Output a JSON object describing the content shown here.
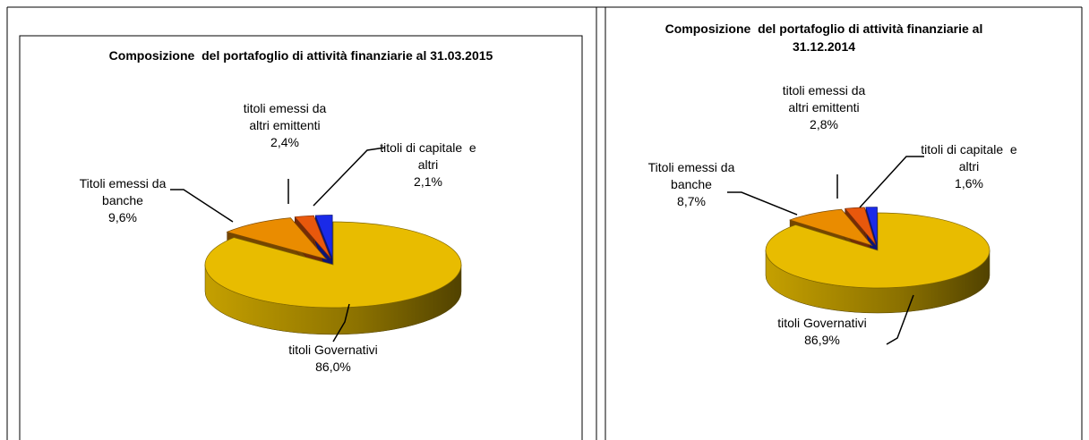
{
  "chart_data": [
    {
      "type": "pie3d",
      "title": "Composizione  del portafoglio di attività finanziarie al 31.03.2015",
      "categories": [
        "titoli Governativi",
        "Titoli emessi da banche",
        "titoli emessi da altri emittenti",
        "titoli di capitale  e altri"
      ],
      "values": [
        86.0,
        9.6,
        2.4,
        2.1
      ],
      "value_labels": [
        "86,0%",
        "9,6%",
        "2,4%",
        "2,1%"
      ],
      "colors": [
        "#e8bc00",
        "#ea8c00",
        "#e8580c",
        "#1a2ae8"
      ]
    },
    {
      "type": "pie3d",
      "title": "Composizione  del portafoglio di attività finanziarie al 31.12.2014",
      "categories": [
        "titoli Governativi",
        "Titoli emessi da banche",
        "titoli emessi da altri emittenti",
        "titoli di capitale  e altri"
      ],
      "values": [
        86.9,
        8.7,
        2.8,
        1.6
      ],
      "value_labels": [
        "86,9%",
        "8,7%",
        "2,8%",
        "1,6%"
      ],
      "colors": [
        "#e8bc00",
        "#ea8c00",
        "#e8580c",
        "#1a2ae8"
      ]
    }
  ]
}
